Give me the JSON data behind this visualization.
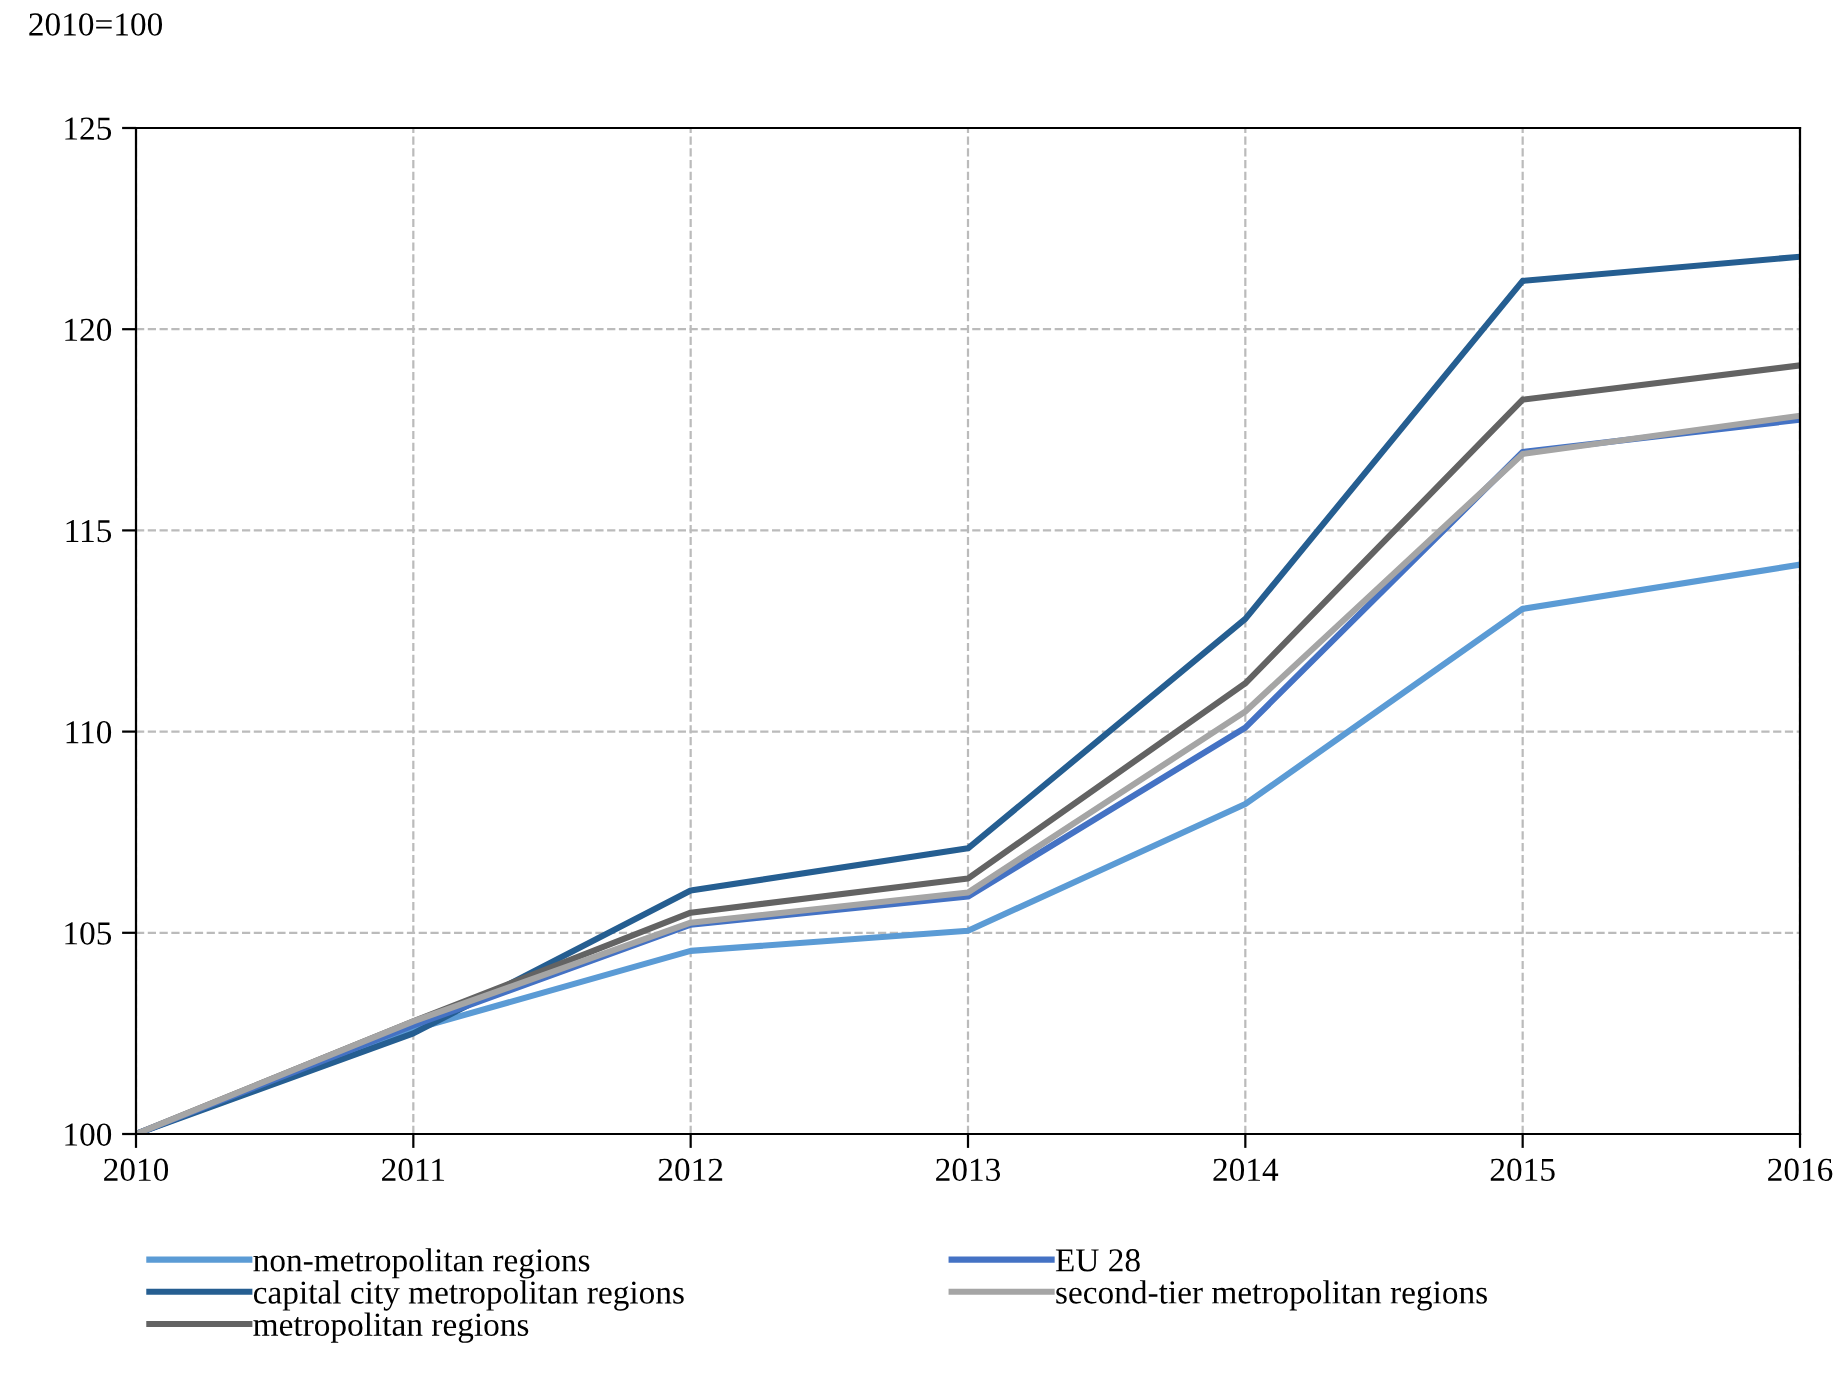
{
  "chart_data": {
    "type": "line",
    "ylabel": "2010=100",
    "x": [
      2010,
      2011,
      2012,
      2013,
      2014,
      2015,
      2016
    ],
    "series": [
      {
        "name": "non-metropolitan regions",
        "color": "#5b9bd5",
        "values": [
          100,
          102.6,
          104.55,
          105.05,
          108.2,
          113.05,
          114.15
        ]
      },
      {
        "name": "capital city metropolitan regions",
        "color": "#255e91",
        "values": [
          100,
          102.5,
          106.05,
          107.1,
          112.8,
          121.2,
          121.8
        ]
      },
      {
        "name": "metropolitan regions",
        "color": "#636363",
        "values": [
          100,
          102.8,
          105.5,
          106.35,
          111.2,
          118.25,
          119.1
        ]
      },
      {
        "name": "EU 28",
        "color": "#4472c4",
        "values": [
          100,
          102.7,
          105.2,
          105.9,
          110.1,
          116.95,
          117.75
        ]
      },
      {
        "name": "second-tier metropolitan regions",
        "color": "#a5a5a5",
        "values": [
          100,
          102.8,
          105.25,
          106.0,
          110.5,
          116.9,
          117.85
        ]
      }
    ],
    "xlim": [
      2010,
      2016
    ],
    "xticks": [
      2010,
      2011,
      2012,
      2013,
      2014,
      2015,
      2016
    ],
    "ylim": [
      100,
      125
    ],
    "yticks": [
      100,
      105,
      110,
      115,
      120,
      125
    ],
    "grid": true,
    "legend": "bottom",
    "marker": "none",
    "line_style": "solid"
  }
}
